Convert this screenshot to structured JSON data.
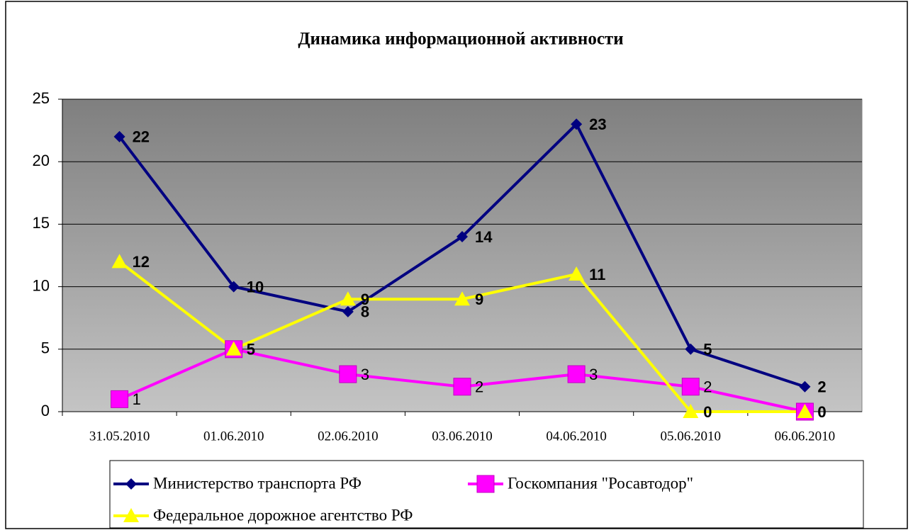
{
  "chart_data": {
    "type": "line",
    "title": "Динамика информационной активности",
    "categories": [
      "31.05.2010",
      "01.06.2010",
      "02.06.2010",
      "03.06.2010",
      "04.06.2010",
      "05.06.2010",
      "06.06.2010"
    ],
    "series": [
      {
        "name": "Министерство транспорта РФ",
        "color": "#000080",
        "marker": "diamond",
        "values": [
          22,
          10,
          8,
          14,
          23,
          5,
          2
        ]
      },
      {
        "name": "Госкомпания \"Росавтодор\"",
        "color": "#ff00ff",
        "marker": "square",
        "values": [
          1,
          5,
          3,
          2,
          3,
          2,
          0
        ]
      },
      {
        "name": "Федеральное дорожное агентство РФ",
        "color": "#ffff00",
        "marker": "triangle",
        "values": [
          12,
          5,
          9,
          9,
          11,
          0,
          0
        ]
      }
    ],
    "ylim": [
      0,
      25
    ],
    "yticks": [
      0,
      5,
      10,
      15,
      20,
      25
    ],
    "grid": true,
    "legend": "bottom"
  }
}
